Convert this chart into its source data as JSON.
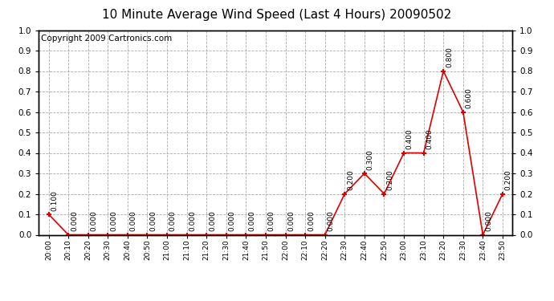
{
  "title": "10 Minute Average Wind Speed (Last 4 Hours) 20090502",
  "copyright": "Copyright 2009 Cartronics.com",
  "x_labels": [
    "20:00",
    "20:10",
    "20:20",
    "20:30",
    "20:40",
    "20:50",
    "21:00",
    "21:10",
    "21:20",
    "21:30",
    "21:40",
    "21:50",
    "22:00",
    "22:10",
    "22:20",
    "22:30",
    "22:40",
    "22:50",
    "23:00",
    "23:10",
    "23:20",
    "23:30",
    "23:40",
    "23:50"
  ],
  "y_values": [
    0.1,
    0.0,
    0.0,
    0.0,
    0.0,
    0.0,
    0.0,
    0.0,
    0.0,
    0.0,
    0.0,
    0.0,
    0.0,
    0.0,
    0.0,
    0.2,
    0.3,
    0.2,
    0.4,
    0.4,
    0.8,
    0.6,
    0.0,
    0.2
  ],
  "line_color": "#dd0000",
  "marker_color": "#dd0000",
  "bg_color": "#ffffff",
  "plot_bg_color": "#ffffff",
  "grid_color": "#aaaaaa",
  "title_fontsize": 11,
  "copyright_fontsize": 7.5,
  "ylim": [
    0.0,
    1.0
  ],
  "yticks": [
    0.0,
    0.1,
    0.2,
    0.3,
    0.4,
    0.5,
    0.6,
    0.7,
    0.8,
    0.9,
    1.0
  ]
}
